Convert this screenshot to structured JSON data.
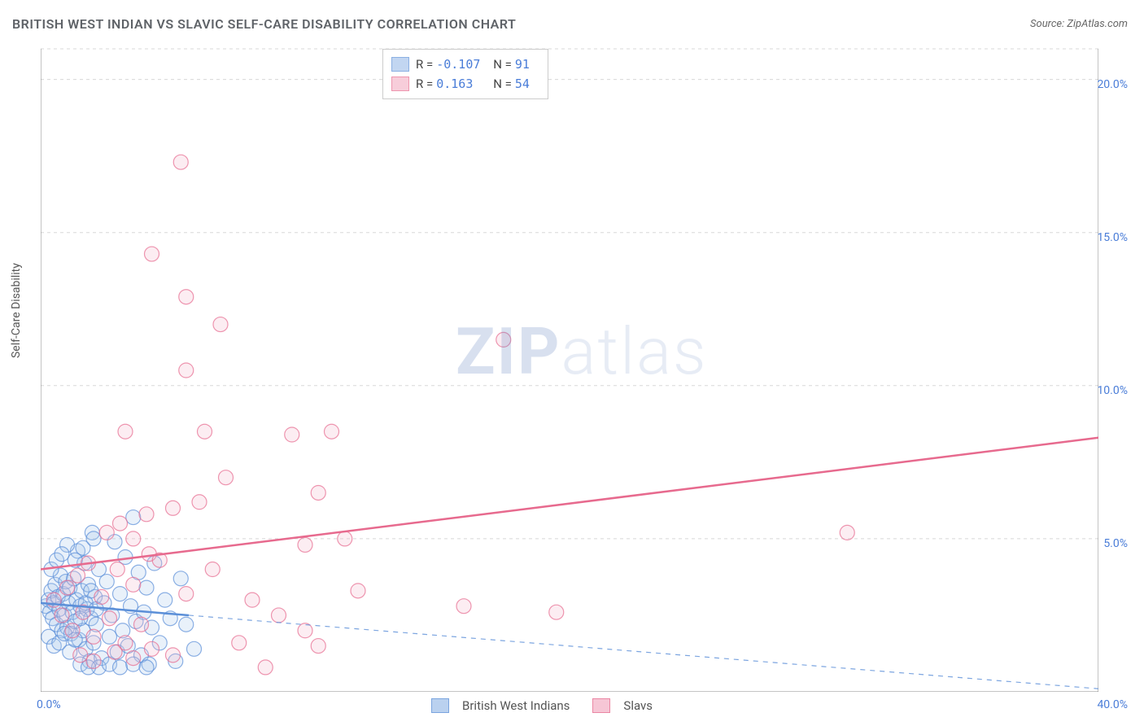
{
  "title": "BRITISH WEST INDIAN VS SLAVIC SELF-CARE DISABILITY CORRELATION CHART",
  "source": "Source: ZipAtlas.com",
  "ylabel": "Self-Care Disability",
  "watermark_a": "ZIP",
  "watermark_b": "atlas",
  "chart": {
    "type": "scatter",
    "xlim": [
      0,
      40
    ],
    "ylim": [
      0,
      21
    ],
    "xticks": [
      {
        "v": 0,
        "label": "0.0%"
      },
      {
        "v": 40,
        "label": "40.0%"
      }
    ],
    "yticks": [
      {
        "v": 5,
        "label": "5.0%"
      },
      {
        "v": 10,
        "label": "10.0%"
      },
      {
        "v": 15,
        "label": "15.0%"
      },
      {
        "v": 20,
        "label": "20.0%"
      }
    ],
    "grid_color": "#d8d8d8",
    "axis_color": "#888",
    "background_color": "#ffffff",
    "marker_radius": 9,
    "marker_fill_opacity": 0.25,
    "marker_stroke_width": 1.2,
    "series": [
      {
        "name": "British West Indians",
        "color": "#5b8fd8",
        "fill": "#a9c6ec",
        "R": "-0.107",
        "N": "91",
        "trend": {
          "x1": 0,
          "y1": 2.9,
          "x2": 5.6,
          "y2": 2.5,
          "dash_x2": 40,
          "dash_y2": 0.1,
          "width": 2.5
        },
        "points": [
          [
            0.2,
            2.8
          ],
          [
            0.3,
            3.0
          ],
          [
            0.35,
            2.6
          ],
          [
            0.4,
            3.3
          ],
          [
            0.45,
            2.4
          ],
          [
            0.5,
            2.9
          ],
          [
            0.55,
            3.5
          ],
          [
            0.6,
            2.2
          ],
          [
            0.65,
            3.1
          ],
          [
            0.7,
            2.7
          ],
          [
            0.75,
            3.8
          ],
          [
            0.8,
            2.0
          ],
          [
            0.85,
            3.2
          ],
          [
            0.9,
            2.5
          ],
          [
            0.95,
            3.6
          ],
          [
            1.0,
            2.1
          ],
          [
            1.05,
            2.9
          ],
          [
            1.1,
            3.4
          ],
          [
            1.15,
            1.9
          ],
          [
            1.2,
            2.6
          ],
          [
            1.25,
            3.7
          ],
          [
            1.3,
            2.3
          ],
          [
            1.35,
            3.0
          ],
          [
            1.4,
            4.6
          ],
          [
            1.45,
            1.7
          ],
          [
            1.5,
            2.8
          ],
          [
            1.55,
            3.3
          ],
          [
            1.6,
            2.0
          ],
          [
            1.65,
            4.2
          ],
          [
            1.7,
            1.4
          ],
          [
            1.75,
            2.7
          ],
          [
            1.8,
            3.5
          ],
          [
            1.85,
            1.0
          ],
          [
            1.9,
            2.4
          ],
          [
            1.95,
            5.2
          ],
          [
            2.0,
            1.6
          ],
          [
            2.05,
            3.1
          ],
          [
            2.1,
            2.2
          ],
          [
            2.2,
            4.0
          ],
          [
            2.3,
            1.1
          ],
          [
            2.4,
            2.9
          ],
          [
            2.5,
            3.6
          ],
          [
            2.6,
            1.8
          ],
          [
            2.7,
            2.5
          ],
          [
            2.8,
            4.9
          ],
          [
            2.9,
            1.3
          ],
          [
            3.0,
            3.2
          ],
          [
            3.1,
            2.0
          ],
          [
            3.2,
            4.4
          ],
          [
            3.3,
            1.5
          ],
          [
            3.4,
            2.8
          ],
          [
            3.5,
            5.7
          ],
          [
            3.6,
            2.3
          ],
          [
            3.7,
            3.9
          ],
          [
            3.8,
            1.2
          ],
          [
            3.9,
            2.6
          ],
          [
            4.0,
            3.4
          ],
          [
            4.1,
            0.9
          ],
          [
            4.2,
            2.1
          ],
          [
            4.3,
            4.2
          ],
          [
            4.5,
            1.6
          ],
          [
            4.7,
            3.0
          ],
          [
            4.9,
            2.4
          ],
          [
            5.1,
            1.0
          ],
          [
            5.3,
            3.7
          ],
          [
            5.5,
            2.2
          ],
          [
            5.8,
            1.4
          ],
          [
            1.0,
            4.8
          ],
          [
            1.3,
            4.3
          ],
          [
            1.6,
            4.7
          ],
          [
            2.0,
            5.0
          ],
          [
            0.4,
            4.0
          ],
          [
            0.6,
            4.3
          ],
          [
            0.8,
            4.5
          ],
          [
            2.2,
            0.8
          ],
          [
            2.6,
            0.9
          ],
          [
            3.0,
            0.8
          ],
          [
            3.5,
            0.9
          ],
          [
            4.0,
            0.8
          ],
          [
            1.5,
            0.9
          ],
          [
            1.8,
            0.8
          ],
          [
            0.3,
            1.8
          ],
          [
            0.5,
            1.5
          ],
          [
            0.7,
            1.6
          ],
          [
            0.9,
            1.9
          ],
          [
            1.1,
            1.3
          ],
          [
            1.3,
            1.7
          ],
          [
            1.5,
            2.4
          ],
          [
            1.7,
            2.9
          ],
          [
            1.9,
            3.3
          ],
          [
            2.1,
            2.7
          ]
        ]
      },
      {
        "name": "Slavs",
        "color": "#e76a8e",
        "fill": "#f4b9cb",
        "R": "0.163",
        "N": "54",
        "trend": {
          "x1": 0,
          "y1": 4.0,
          "x2": 40,
          "y2": 8.3,
          "width": 2.5
        },
        "points": [
          [
            0.5,
            3.0
          ],
          [
            0.8,
            2.5
          ],
          [
            1.0,
            3.4
          ],
          [
            1.2,
            2.0
          ],
          [
            1.4,
            3.8
          ],
          [
            1.6,
            2.6
          ],
          [
            1.8,
            4.2
          ],
          [
            2.0,
            1.8
          ],
          [
            2.3,
            3.1
          ],
          [
            2.6,
            2.4
          ],
          [
            2.9,
            4.0
          ],
          [
            3.2,
            1.6
          ],
          [
            3.5,
            3.5
          ],
          [
            3.8,
            2.2
          ],
          [
            4.1,
            4.5
          ],
          [
            2.5,
            5.2
          ],
          [
            3.0,
            5.5
          ],
          [
            3.5,
            5.0
          ],
          [
            4.0,
            5.8
          ],
          [
            4.5,
            4.3
          ],
          [
            5.0,
            6.0
          ],
          [
            5.5,
            3.2
          ],
          [
            3.2,
            8.5
          ],
          [
            4.2,
            14.3
          ],
          [
            5.5,
            10.5
          ],
          [
            5.5,
            12.9
          ],
          [
            6.0,
            6.2
          ],
          [
            6.2,
            8.5
          ],
          [
            6.5,
            4.0
          ],
          [
            6.8,
            12.0
          ],
          [
            7.0,
            7.0
          ],
          [
            7.5,
            1.6
          ],
          [
            8.0,
            3.0
          ],
          [
            5.3,
            17.3
          ],
          [
            9.5,
            8.4
          ],
          [
            10.0,
            4.8
          ],
          [
            10.5,
            6.5
          ],
          [
            11.0,
            8.5
          ],
          [
            11.5,
            5.0
          ],
          [
            12.0,
            3.3
          ],
          [
            10.5,
            1.5
          ],
          [
            10.0,
            2.0
          ],
          [
            9.0,
            2.5
          ],
          [
            16.0,
            2.8
          ],
          [
            17.5,
            11.5
          ],
          [
            19.5,
            2.6
          ],
          [
            30.5,
            5.2
          ],
          [
            1.5,
            1.2
          ],
          [
            2.0,
            1.0
          ],
          [
            2.8,
            1.3
          ],
          [
            3.5,
            1.1
          ],
          [
            4.2,
            1.4
          ],
          [
            5.0,
            1.2
          ],
          [
            8.5,
            0.8
          ]
        ]
      }
    ]
  },
  "bottom_legend": {
    "items": [
      {
        "label": "British West Indians",
        "fill": "#a9c6ec",
        "stroke": "#5b8fd8"
      },
      {
        "label": "Slavs",
        "fill": "#f4b9cb",
        "stroke": "#e76a8e"
      }
    ]
  }
}
